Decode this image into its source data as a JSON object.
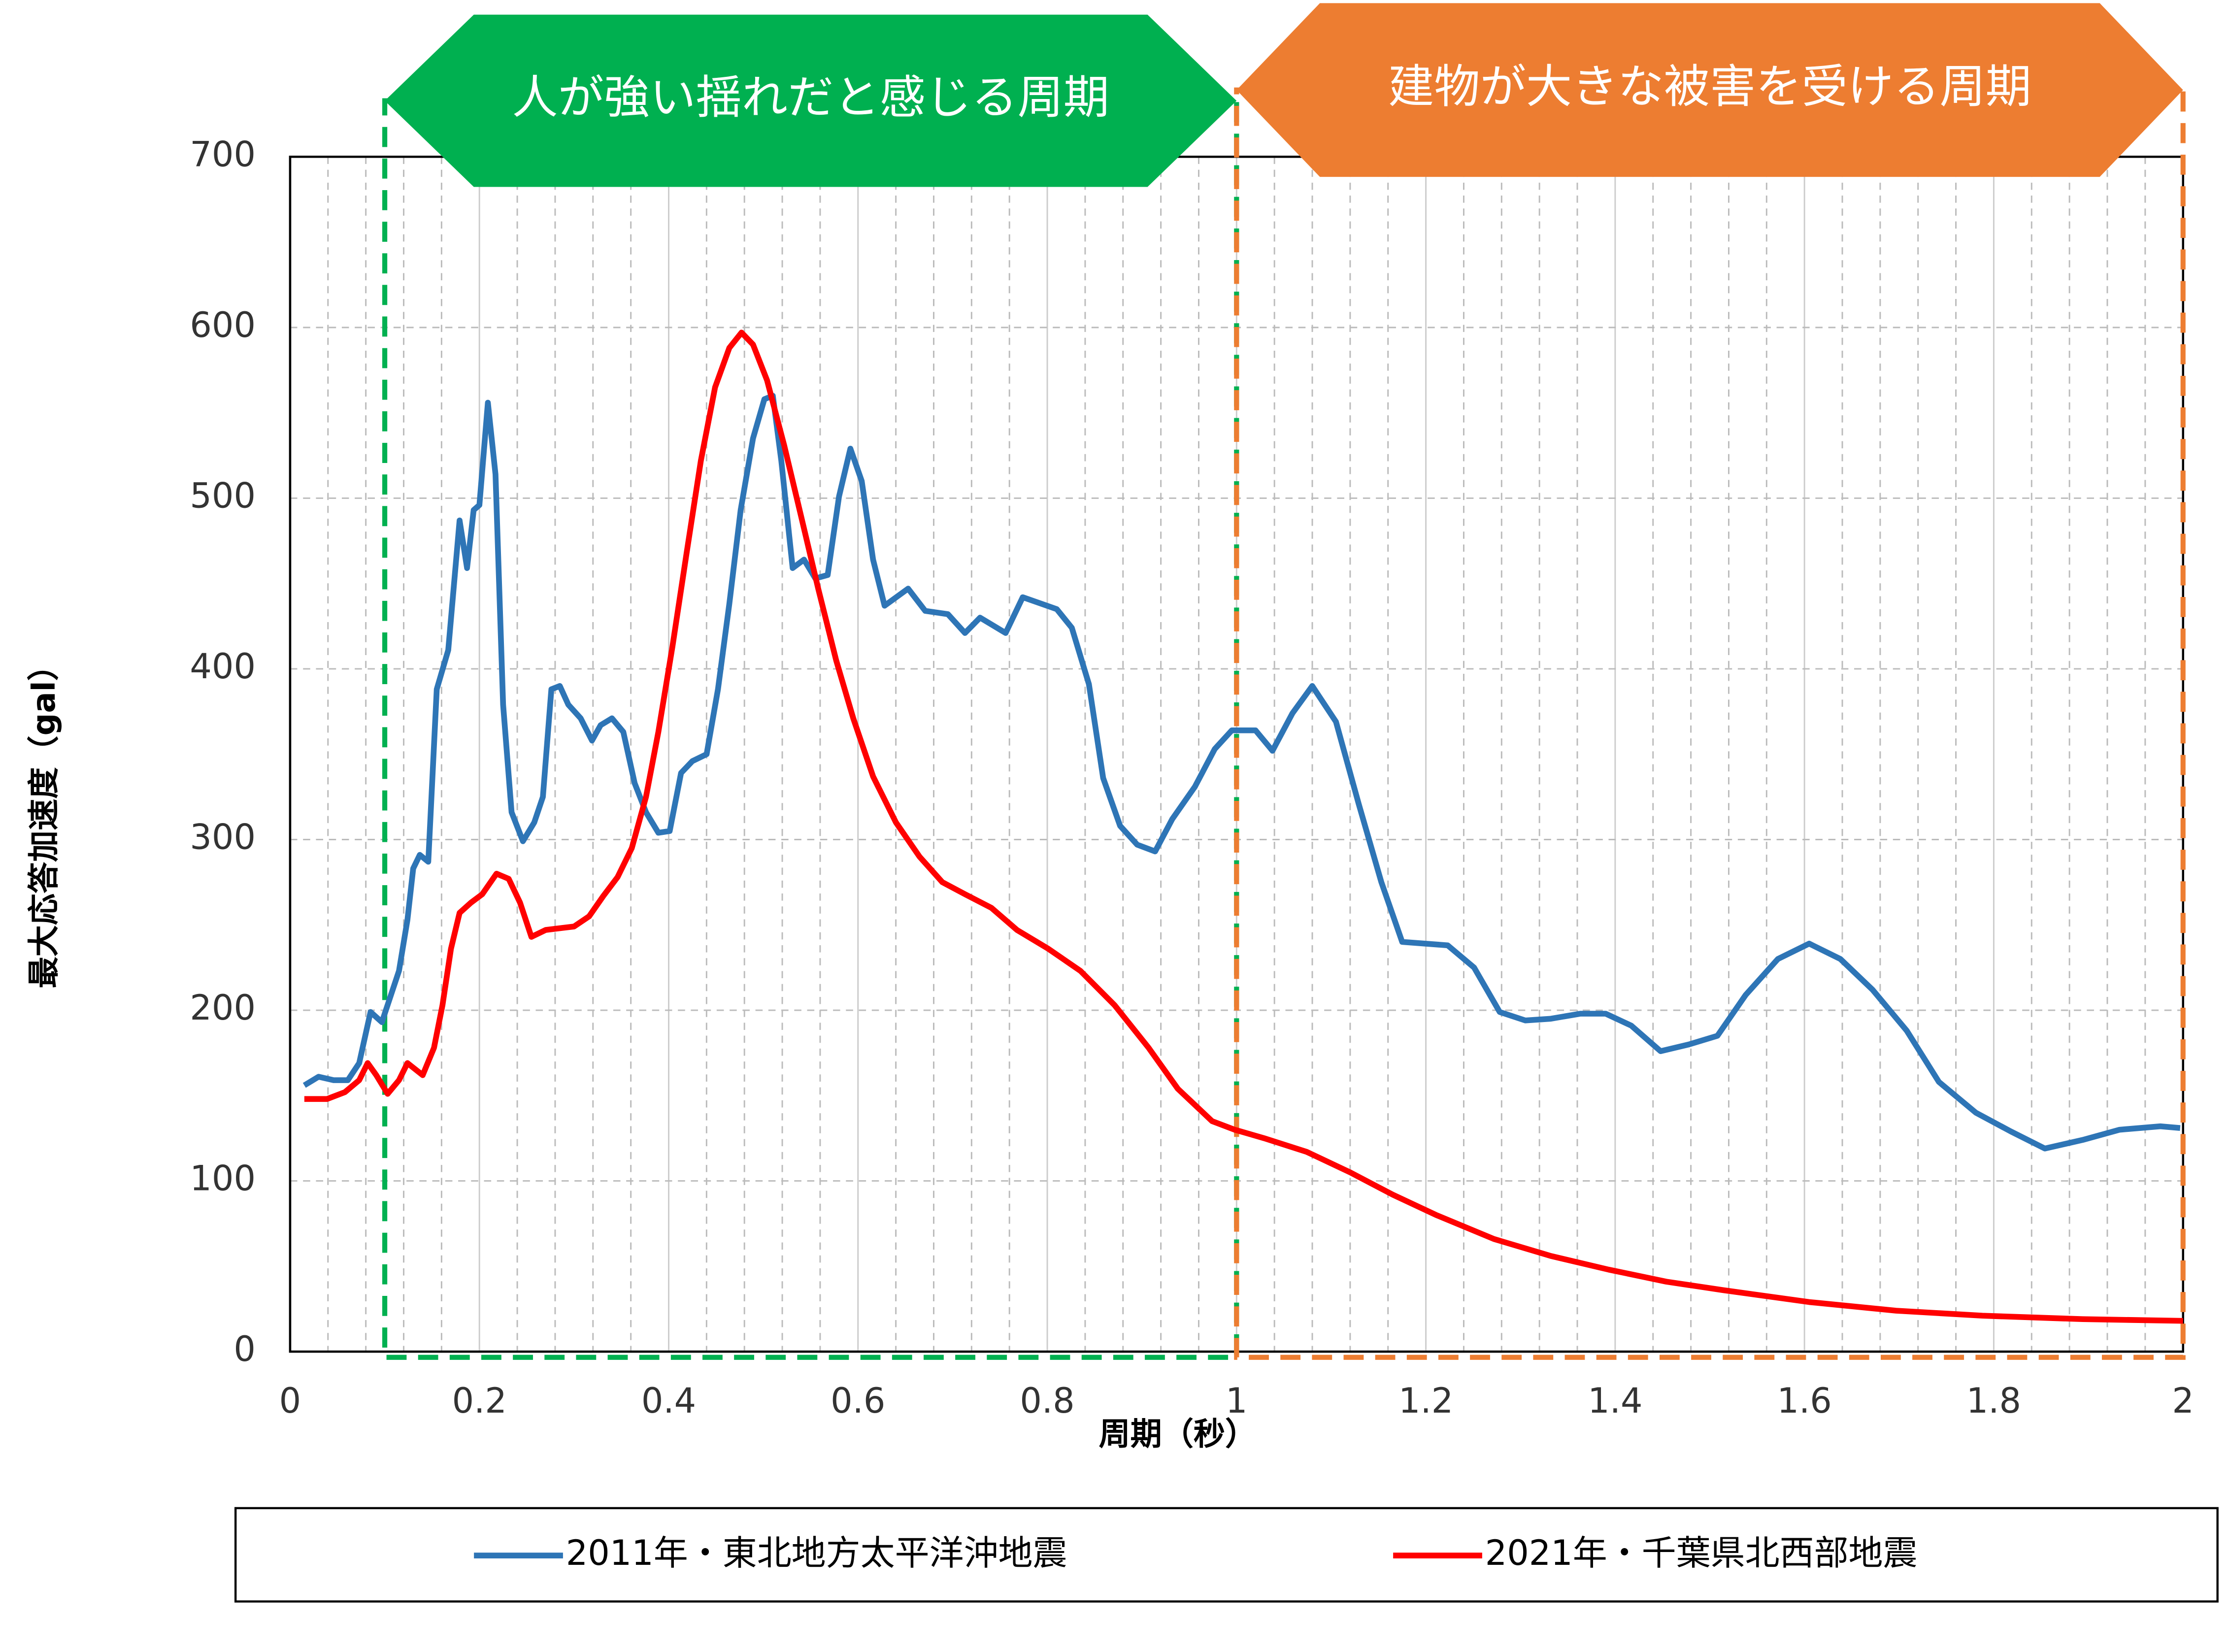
{
  "chart_data": {
    "type": "line",
    "x_label": "周期（秒）",
    "y_label": "最大応答加速度（gal）",
    "xlim": [
      0,
      2
    ],
    "ylim": [
      0,
      700
    ],
    "xticks": [
      0,
      0.2,
      0.4,
      0.6,
      0.8,
      1,
      1.2,
      1.4,
      1.6,
      1.8,
      2
    ],
    "yticks": [
      0,
      100,
      200,
      300,
      400,
      500,
      600,
      700
    ],
    "grid": true,
    "legend": "bottom",
    "regions": [
      {
        "label": "人が強い揺れだと感じる周期",
        "color": "#00b050",
        "range": [
          0.1,
          1.0
        ]
      },
      {
        "label": "建物が大きな被害を受ける周期",
        "color": "#ed7d31",
        "range": [
          1.0,
          2.0
        ]
      }
    ],
    "series": [
      {
        "name": "2011年・東北地方太平洋沖地震",
        "color": "#2e75b6",
        "x": [
          0.015,
          0.03,
          0.046,
          0.061,
          0.073,
          0.085,
          0.097,
          0.115,
          0.124,
          0.13,
          0.137,
          0.146,
          0.155,
          0.167,
          0.179,
          0.187,
          0.194,
          0.2,
          0.209,
          0.217,
          0.225,
          0.234,
          0.246,
          0.258,
          0.267,
          0.276,
          0.285,
          0.294,
          0.307,
          0.319,
          0.328,
          0.34,
          0.352,
          0.364,
          0.376,
          0.389,
          0.401,
          0.413,
          0.425,
          0.44,
          0.452,
          0.464,
          0.476,
          0.489,
          0.501,
          0.51,
          0.519,
          0.531,
          0.543,
          0.555,
          0.568,
          0.58,
          0.592,
          0.604,
          0.616,
          0.628,
          0.653,
          0.671,
          0.695,
          0.713,
          0.729,
          0.756,
          0.774,
          0.81,
          0.826,
          0.844,
          0.859,
          0.877,
          0.895,
          0.914,
          0.932,
          0.956,
          0.977,
          0.995,
          1.02,
          1.038,
          1.059,
          1.08,
          1.105,
          1.129,
          1.153,
          1.175,
          1.223,
          1.251,
          1.278,
          1.305,
          1.332,
          1.363,
          1.39,
          1.417,
          1.448,
          1.478,
          1.508,
          1.538,
          1.572,
          1.605,
          1.638,
          1.672,
          1.708,
          1.742,
          1.781,
          1.818,
          1.854,
          1.894,
          1.933,
          1.976,
          1.997
        ],
        "values": [
          156,
          161,
          159,
          159,
          169,
          199,
          193,
          223,
          253,
          283,
          291,
          287,
          388,
          411,
          487,
          459,
          493,
          496,
          556,
          514,
          379,
          316,
          299,
          310,
          325,
          388,
          390,
          379,
          371,
          358,
          367,
          371,
          363,
          333,
          316,
          304,
          305,
          339,
          346,
          350,
          388,
          438,
          493,
          535,
          558,
          560,
          522,
          459,
          464,
          453,
          455,
          501,
          529,
          510,
          464,
          437,
          447,
          434,
          432,
          421,
          430,
          421,
          442,
          435,
          424,
          391,
          336,
          308,
          297,
          293,
          312,
          331,
          353,
          364,
          364,
          352,
          374,
          390,
          369,
          321,
          275,
          240,
          238,
          225,
          199,
          194,
          195,
          198,
          198,
          191,
          176,
          180,
          185,
          209,
          230,
          239,
          230,
          212,
          188,
          158,
          140,
          129,
          119,
          124,
          130,
          132,
          131
        ]
      },
      {
        "name": "2021年・千葉県北西部地震",
        "color": "#ff0000",
        "x": [
          0.015,
          0.039,
          0.058,
          0.073,
          0.082,
          0.091,
          0.103,
          0.115,
          0.124,
          0.14,
          0.152,
          0.161,
          0.17,
          0.179,
          0.191,
          0.203,
          0.218,
          0.231,
          0.243,
          0.255,
          0.27,
          0.3,
          0.316,
          0.331,
          0.346,
          0.361,
          0.376,
          0.389,
          0.404,
          0.419,
          0.434,
          0.449,
          0.464,
          0.477,
          0.489,
          0.504,
          0.522,
          0.54,
          0.558,
          0.577,
          0.595,
          0.616,
          0.64,
          0.665,
          0.689,
          0.713,
          0.741,
          0.768,
          0.801,
          0.835,
          0.871,
          0.907,
          0.938,
          0.974,
          0.998,
          1.029,
          1.074,
          1.12,
          1.165,
          1.211,
          1.272,
          1.332,
          1.393,
          1.454,
          1.514,
          1.605,
          1.697,
          1.788,
          1.894,
          2.0
        ],
        "values": [
          148,
          148,
          152,
          159,
          169,
          162,
          151,
          159,
          169,
          162,
          178,
          203,
          236,
          257,
          263,
          268,
          280,
          277,
          263,
          243,
          247,
          249,
          255,
          267,
          278,
          295,
          325,
          363,
          413,
          468,
          522,
          565,
          588,
          597,
          590,
          569,
          531,
          489,
          447,
          405,
          371,
          337,
          310,
          290,
          275,
          268,
          260,
          247,
          236,
          223,
          203,
          178,
          154,
          135,
          130,
          125,
          117,
          105,
          92,
          80,
          66,
          56,
          48,
          41,
          36,
          29,
          24,
          21,
          19,
          18
        ]
      }
    ]
  }
}
